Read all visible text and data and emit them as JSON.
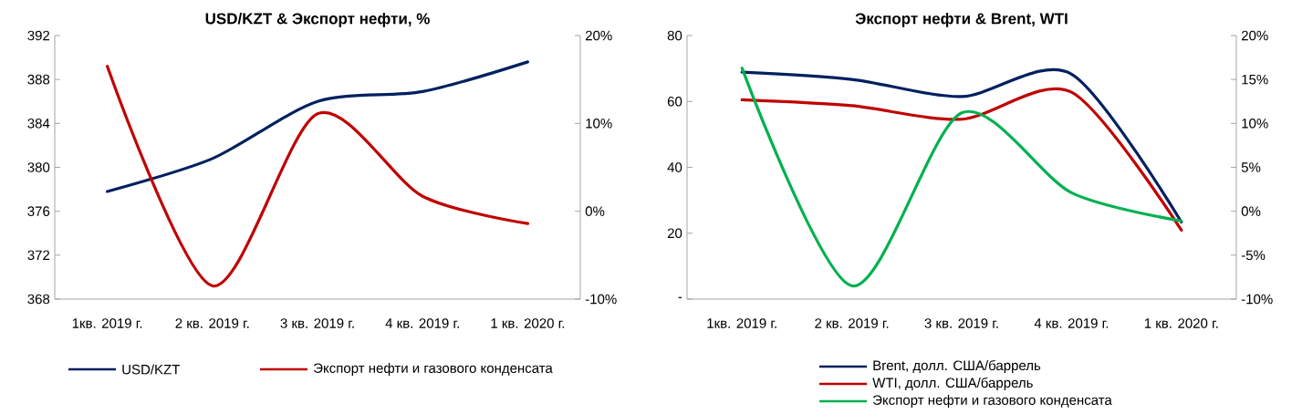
{
  "chart_data": [
    {
      "type": "line",
      "title": "USD/KZT & Экспорт нефти, %",
      "categories": [
        "1кв. 2019 г.",
        "2 кв. 2019 г.",
        "3 кв. 2019 г.",
        "4 кв. 2019 г.",
        "1 кв. 2020 г."
      ],
      "series": [
        {
          "name": "USD/KZT",
          "color": "#002060",
          "values": [
            377.8,
            380.8,
            386.0,
            386.9,
            389.6
          ]
        },
        {
          "name": "Экспорт нефти и газового конденсата",
          "color": "#c00000",
          "axis": "y2",
          "values": [
            16.5,
            -8.5,
            11.1,
            1.7,
            -1.4
          ]
        }
      ],
      "ylim": [
        368,
        392
      ],
      "yticks": [
        368,
        372,
        376,
        380,
        384,
        388,
        392
      ],
      "y2lim": [
        -10,
        20
      ],
      "y2ticks": [
        {
          "value": -10,
          "label": "-10%"
        },
        {
          "value": 0,
          "label": "0%"
        },
        {
          "value": 10,
          "label": "10%"
        },
        {
          "value": 20,
          "label": "20%"
        }
      ],
      "legend": "bottom"
    },
    {
      "type": "line",
      "title": "Экспорт нефти & Brent, WTI",
      "categories": [
        "1кв. 2019 г.",
        "2 кв. 2019 г.",
        "3 кв. 2019 г.",
        "4 кв. 2019 г.",
        "1 кв. 2020 г."
      ],
      "series": [
        {
          "name": "Brent, долл. США/баррель",
          "color": "#002060",
          "values": [
            68.9,
            66.7,
            61.5,
            68.3,
            23.4
          ]
        },
        {
          "name": "WTI, долл. США/баррель",
          "color": "#c00000",
          "values": [
            60.5,
            58.7,
            54.6,
            62.8,
            20.9
          ]
        },
        {
          "name": "Экспорт нефти и газового конденсата",
          "color": "#00b050",
          "axis": "y2",
          "values": [
            16.3,
            -8.5,
            11.2,
            2.1,
            -1.1
          ]
        }
      ],
      "ylim": [
        0,
        80
      ],
      "yticks": [
        {
          "value": 0,
          "label": "-"
        },
        20,
        40,
        60,
        80
      ],
      "y2lim": [
        -10,
        20
      ],
      "y2ticks": [
        {
          "value": -10,
          "label": "-10%"
        },
        {
          "value": -5,
          "label": "-5%"
        },
        {
          "value": 0,
          "label": "0%"
        },
        {
          "value": 5,
          "label": "5%"
        },
        {
          "value": 10,
          "label": "10%"
        },
        {
          "value": 15,
          "label": "15%"
        },
        {
          "value": 20,
          "label": "20%"
        }
      ],
      "legend": "bottom"
    }
  ]
}
